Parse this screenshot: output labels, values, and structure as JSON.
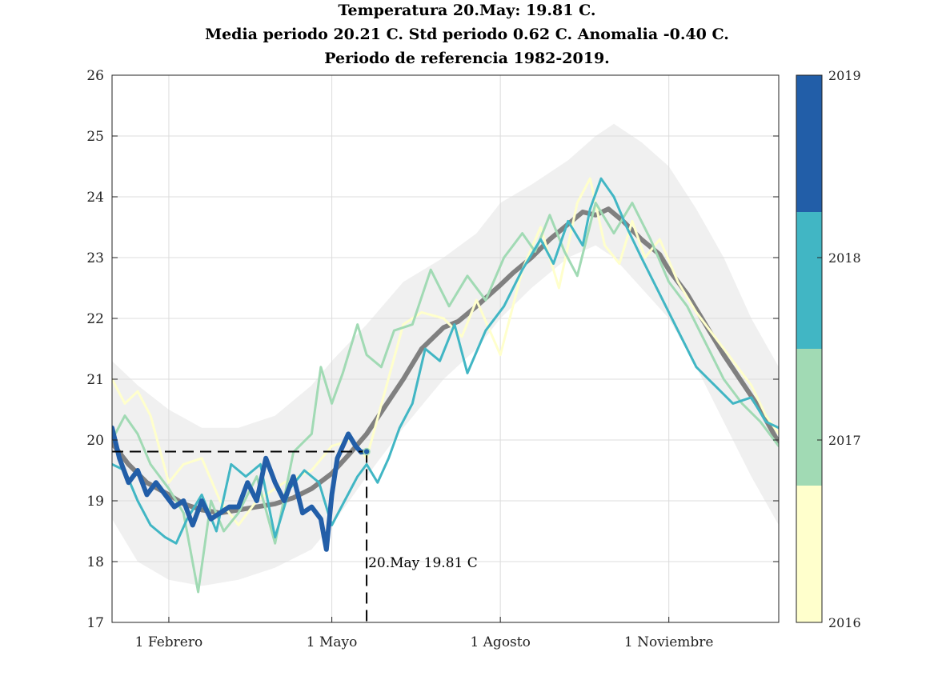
{
  "title": {
    "line1": "Temperatura 20.May: 19.81 C.",
    "line2": "Media periodo 20.21 C. Std periodo 0.62 C. Anomalia -0.40 C.",
    "line3": "Periodo de referencia 1982-2019."
  },
  "chart_data": {
    "type": "line",
    "xlim": [
      1,
      365
    ],
    "ylim": [
      17,
      26
    ],
    "y_ticks": [
      17,
      18,
      19,
      20,
      21,
      22,
      23,
      24,
      25,
      26
    ],
    "x_ticks": [
      {
        "day": 32,
        "label": "1 Febrero"
      },
      {
        "day": 121,
        "label": "1 Mayo"
      },
      {
        "day": 213,
        "label": "1 Agosto"
      },
      {
        "day": 305,
        "label": "1 Noviembre"
      }
    ],
    "x_grid_days": [
      32,
      121,
      213,
      305
    ],
    "grid": true,
    "annotation": {
      "day": 140,
      "value": 19.81,
      "text": "20.May 19.81 C"
    },
    "colorbar": {
      "placement": "right",
      "labels": [
        "2016",
        "2017",
        "2018",
        "2019"
      ],
      "colors": [
        "#ffffcc",
        "#a1dab4",
        "#41b6c4",
        "#225ea8"
      ]
    },
    "envelope": {
      "name": "",
      "color": "#f0f0f0",
      "days": [
        1,
        15,
        32,
        50,
        70,
        90,
        110,
        121,
        140,
        160,
        182,
        200,
        213,
        230,
        250,
        265,
        275,
        290,
        305,
        320,
        335,
        350,
        365
      ],
      "upper": [
        21.3,
        20.9,
        20.5,
        20.2,
        20.2,
        20.4,
        20.9,
        21.3,
        21.9,
        22.6,
        23.0,
        23.4,
        23.9,
        24.2,
        24.6,
        25.0,
        25.2,
        24.9,
        24.5,
        23.8,
        23.0,
        22.0,
        21.2
      ],
      "lower": [
        18.7,
        18.0,
        17.7,
        17.6,
        17.7,
        17.9,
        18.2,
        18.6,
        19.4,
        20.2,
        21.0,
        21.5,
        22.0,
        22.5,
        23.0,
        23.2,
        23.0,
        22.5,
        22.0,
        21.2,
        20.3,
        19.4,
        18.6
      ]
    },
    "series": [
      {
        "name": "",
        "color": "#808080",
        "days": [
          1,
          10,
          20,
          32,
          40,
          50,
          60,
          70,
          80,
          90,
          100,
          110,
          121,
          130,
          140,
          150,
          160,
          170,
          182,
          190,
          200,
          213,
          220,
          230,
          240,
          250,
          258,
          265,
          272,
          280,
          290,
          300,
          305,
          315,
          325,
          335,
          345,
          355,
          365
        ],
        "values": [
          19.95,
          19.6,
          19.3,
          19.1,
          18.95,
          18.85,
          18.8,
          18.85,
          18.9,
          18.95,
          19.05,
          19.2,
          19.45,
          19.75,
          20.1,
          20.55,
          21.0,
          21.5,
          21.85,
          21.95,
          22.2,
          22.55,
          22.75,
          23.0,
          23.3,
          23.55,
          23.75,
          23.7,
          23.8,
          23.6,
          23.3,
          23.05,
          22.8,
          22.4,
          21.9,
          21.4,
          20.95,
          20.5,
          19.95
        ]
      },
      {
        "name": "2016",
        "color": "#ffffcc",
        "days": [
          1,
          8,
          15,
          22,
          32,
          40,
          50,
          60,
          70,
          80,
          95,
          110,
          121,
          132,
          140,
          150,
          160,
          170,
          182,
          192,
          200,
          213,
          225,
          235,
          245,
          255,
          262,
          270,
          278,
          285,
          292,
          300,
          310,
          320,
          330,
          340,
          350,
          358,
          365
        ],
        "values": [
          21.0,
          20.6,
          20.8,
          20.4,
          19.3,
          19.6,
          19.7,
          19.0,
          18.6,
          19.0,
          19.3,
          19.5,
          19.9,
          20.0,
          19.7,
          20.8,
          21.9,
          22.1,
          22.0,
          21.7,
          22.3,
          21.4,
          22.8,
          23.5,
          22.5,
          23.9,
          24.3,
          23.2,
          22.9,
          23.6,
          23.0,
          23.3,
          22.6,
          22.1,
          21.7,
          21.3,
          20.9,
          20.4,
          20.1
        ]
      },
      {
        "name": "2017",
        "color": "#a1dab4",
        "days": [
          1,
          8,
          15,
          22,
          32,
          40,
          48,
          55,
          62,
          70,
          80,
          90,
          100,
          110,
          115,
          121,
          127,
          135,
          140,
          148,
          155,
          165,
          175,
          185,
          195,
          205,
          215,
          225,
          232,
          240,
          248,
          255,
          265,
          275,
          285,
          295,
          305,
          315,
          325,
          335,
          345,
          355,
          365
        ],
        "values": [
          20.0,
          20.4,
          20.1,
          19.6,
          19.2,
          18.8,
          17.5,
          19.0,
          18.5,
          18.8,
          19.4,
          18.3,
          19.8,
          20.1,
          21.2,
          20.6,
          21.1,
          21.9,
          21.4,
          21.2,
          21.8,
          21.9,
          22.8,
          22.2,
          22.7,
          22.3,
          23.0,
          23.4,
          23.1,
          23.7,
          23.1,
          22.7,
          23.9,
          23.4,
          23.9,
          23.3,
          22.6,
          22.2,
          21.6,
          21.0,
          20.6,
          20.3,
          19.9
        ]
      },
      {
        "name": "2018",
        "color": "#41b6c4",
        "days": [
          1,
          8,
          15,
          22,
          30,
          36,
          42,
          50,
          58,
          66,
          74,
          82,
          90,
          98,
          106,
          114,
          121,
          128,
          135,
          140,
          146,
          152,
          158,
          165,
          172,
          180,
          188,
          195,
          205,
          215,
          225,
          235,
          242,
          250,
          258,
          262,
          268,
          275,
          282,
          290,
          300,
          310,
          320,
          330,
          340,
          350,
          358,
          365
        ],
        "values": [
          19.6,
          19.5,
          19.0,
          18.6,
          18.4,
          18.3,
          18.7,
          19.1,
          18.5,
          19.6,
          19.4,
          19.6,
          18.4,
          19.2,
          19.5,
          19.3,
          18.6,
          19.0,
          19.4,
          19.6,
          19.3,
          19.7,
          20.2,
          20.6,
          21.5,
          21.3,
          21.9,
          21.1,
          21.8,
          22.2,
          22.8,
          23.3,
          22.9,
          23.6,
          23.2,
          23.8,
          24.3,
          24.0,
          23.5,
          23.0,
          22.4,
          21.8,
          21.2,
          20.9,
          20.6,
          20.7,
          20.3,
          20.2
        ]
      },
      {
        "name": "2019",
        "color": "#225ea8",
        "days": [
          1,
          5,
          10,
          15,
          20,
          25,
          30,
          35,
          40,
          45,
          50,
          55,
          60,
          65,
          70,
          75,
          80,
          85,
          90,
          95,
          100,
          105,
          110,
          115,
          118,
          121,
          124,
          127,
          130,
          134,
          137,
          140
        ],
        "values": [
          20.2,
          19.7,
          19.3,
          19.5,
          19.1,
          19.3,
          19.1,
          18.9,
          19.0,
          18.6,
          19.0,
          18.7,
          18.8,
          18.9,
          18.9,
          19.3,
          19.0,
          19.7,
          19.3,
          19.0,
          19.4,
          18.8,
          18.9,
          18.7,
          18.2,
          19.1,
          19.7,
          19.9,
          20.1,
          19.9,
          19.8,
          19.81
        ]
      }
    ]
  }
}
